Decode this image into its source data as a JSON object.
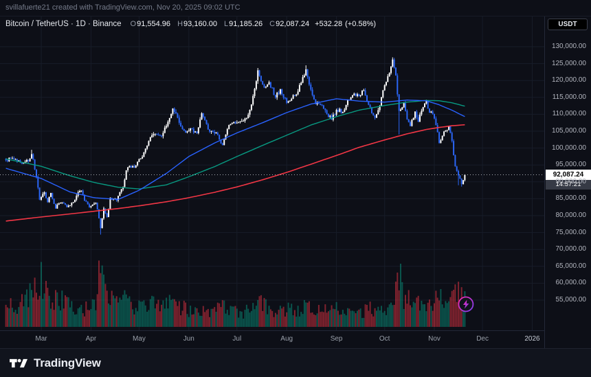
{
  "attribution": "svillafuerte21 created with TradingView.com, Nov 20, 2025 09:02 UTC",
  "header": {
    "symbol_line": "Bitcoin / TetherUS · 1D · Binance",
    "ohlc": [
      {
        "k": "O",
        "v": "91,554.96"
      },
      {
        "k": "H",
        "v": "93,160.00"
      },
      {
        "k": "L",
        "v": "91,185.26"
      },
      {
        "k": "C",
        "v": "92,087.24"
      }
    ],
    "change": "+532.28",
    "change_pct": "(+0.58%)"
  },
  "axis": {
    "currency_button": "USDT",
    "price_label": "92,087.24",
    "countdown": "14:57:21"
  },
  "footer": {
    "brand": "TradingView"
  },
  "chart_data": {
    "type": "candlestick",
    "symbol": "Bitcoin / TetherUS",
    "interval": "1D",
    "exchange": "Binance",
    "last_bar": {
      "open": 91554.96,
      "high": 93160.0,
      "low": 91185.26,
      "close": 92087.24,
      "change": 532.28,
      "change_pct": 0.58
    },
    "current_price": 92087.24,
    "y_ticks": [
      130000,
      125000,
      120000,
      115000,
      110000,
      105000,
      100000,
      95000,
      90000,
      85000,
      80000,
      75000,
      70000,
      65000,
      60000,
      55000
    ],
    "y_range": [
      52000,
      133500
    ],
    "x_axis": {
      "labels": [
        {
          "label": "Mar",
          "day": 22
        },
        {
          "label": "Apr",
          "day": 53
        },
        {
          "label": "May",
          "day": 83
        },
        {
          "label": "Jun",
          "day": 114
        },
        {
          "label": "Jul",
          "day": 144
        },
        {
          "label": "Aug",
          "day": 175
        },
        {
          "label": "Sep",
          "day": 206
        },
        {
          "label": "Oct",
          "day": 236
        },
        {
          "label": "Nov",
          "day": 267
        },
        {
          "label": "Dec",
          "day": 297
        },
        {
          "label": "2026",
          "day": 328
        }
      ]
    },
    "num_days": 287,
    "close_anchors": [
      [
        0,
        96400
      ],
      [
        4,
        97000
      ],
      [
        9,
        95800
      ],
      [
        14,
        96100
      ],
      [
        16,
        98200
      ],
      [
        17,
        96600
      ],
      [
        19,
        91500
      ],
      [
        21,
        84700
      ],
      [
        24,
        86900
      ],
      [
        26,
        84000
      ],
      [
        28,
        86700
      ],
      [
        31,
        82100
      ],
      [
        33,
        83600
      ],
      [
        35,
        83900
      ],
      [
        38,
        82500
      ],
      [
        42,
        84000
      ],
      [
        45,
        86900
      ],
      [
        47,
        87400
      ],
      [
        49,
        84400
      ],
      [
        52,
        82500
      ],
      [
        56,
        83800
      ],
      [
        58,
        79200
      ],
      [
        59,
        76300
      ],
      [
        61,
        82100
      ],
      [
        63,
        79600
      ],
      [
        65,
        85200
      ],
      [
        69,
        84500
      ],
      [
        73,
        88500
      ],
      [
        75,
        93400
      ],
      [
        77,
        94700
      ],
      [
        80,
        94200
      ],
      [
        84,
        96900
      ],
      [
        87,
        99800
      ],
      [
        90,
        103200
      ],
      [
        94,
        104100
      ],
      [
        97,
        103500
      ],
      [
        100,
        106500
      ],
      [
        104,
        111700
      ],
      [
        107,
        109000
      ],
      [
        110,
        105600
      ],
      [
        112,
        104600
      ],
      [
        115,
        105800
      ],
      [
        119,
        104400
      ],
      [
        122,
        110300
      ],
      [
        126,
        105500
      ],
      [
        129,
        104800
      ],
      [
        132,
        103900
      ],
      [
        135,
        100900
      ],
      [
        138,
        105600
      ],
      [
        140,
        107100
      ],
      [
        144,
        107500
      ],
      [
        147,
        108000
      ],
      [
        150,
        108900
      ],
      [
        152,
        111300
      ],
      [
        155,
        117500
      ],
      [
        157,
        123000
      ],
      [
        159,
        119800
      ],
      [
        161,
        117900
      ],
      [
        164,
        119500
      ],
      [
        168,
        115000
      ],
      [
        171,
        117400
      ],
      [
        175,
        113400
      ],
      [
        178,
        114600
      ],
      [
        182,
        116700
      ],
      [
        185,
        121000
      ],
      [
        187,
        123300
      ],
      [
        190,
        117300
      ],
      [
        193,
        113000
      ],
      [
        196,
        112800
      ],
      [
        199,
        111200
      ],
      [
        203,
        108400
      ],
      [
        206,
        111300
      ],
      [
        210,
        110700
      ],
      [
        213,
        114300
      ],
      [
        217,
        116100
      ],
      [
        220,
        115400
      ],
      [
        223,
        117100
      ],
      [
        226,
        112800
      ],
      [
        230,
        109000
      ],
      [
        233,
        112500
      ],
      [
        236,
        118600
      ],
      [
        239,
        122200
      ],
      [
        241,
        126200
      ],
      [
        243,
        121500
      ],
      [
        245,
        111000
      ],
      [
        248,
        113300
      ],
      [
        250,
        108500
      ],
      [
        252,
        106500
      ],
      [
        255,
        110800
      ],
      [
        257,
        107800
      ],
      [
        259,
        111000
      ],
      [
        262,
        113900
      ],
      [
        264,
        110500
      ],
      [
        266,
        110100
      ],
      [
        268,
        106800
      ],
      [
        270,
        101500
      ],
      [
        272,
        103600
      ],
      [
        274,
        105200
      ],
      [
        276,
        106500
      ],
      [
        278,
        102100
      ],
      [
        280,
        94600
      ],
      [
        282,
        91900
      ],
      [
        284,
        89300
      ],
      [
        285,
        90500
      ],
      [
        286,
        92087.24
      ]
    ],
    "low_overrides": {
      "59": 74400,
      "245": 104000,
      "282": 89000,
      "284": 88600
    },
    "high_overrides": {
      "16": 99500,
      "157": 123200,
      "187": 124500,
      "241": 126300
    },
    "volume_anchors": [
      [
        0,
        0.42
      ],
      [
        8,
        0.35
      ],
      [
        16,
        0.6
      ],
      [
        19,
        0.85
      ],
      [
        21,
        0.95
      ],
      [
        25,
        0.6
      ],
      [
        28,
        0.5
      ],
      [
        33,
        0.55
      ],
      [
        38,
        0.4
      ],
      [
        42,
        0.32
      ],
      [
        47,
        0.35
      ],
      [
        52,
        0.3
      ],
      [
        56,
        0.5
      ],
      [
        59,
        1.0
      ],
      [
        61,
        0.8
      ],
      [
        65,
        0.5
      ],
      [
        70,
        0.38
      ],
      [
        75,
        0.5
      ],
      [
        80,
        0.38
      ],
      [
        84,
        0.35
      ],
      [
        90,
        0.42
      ],
      [
        97,
        0.32
      ],
      [
        104,
        0.45
      ],
      [
        110,
        0.35
      ],
      [
        117,
        0.28
      ],
      [
        124,
        0.3
      ],
      [
        130,
        0.28
      ],
      [
        135,
        0.4
      ],
      [
        140,
        0.3
      ],
      [
        147,
        0.26
      ],
      [
        152,
        0.32
      ],
      [
        157,
        0.5
      ],
      [
        162,
        0.38
      ],
      [
        168,
        0.3
      ],
      [
        175,
        0.32
      ],
      [
        182,
        0.3
      ],
      [
        187,
        0.42
      ],
      [
        193,
        0.38
      ],
      [
        199,
        0.3
      ],
      [
        203,
        0.35
      ],
      [
        210,
        0.28
      ],
      [
        217,
        0.3
      ],
      [
        223,
        0.28
      ],
      [
        230,
        0.35
      ],
      [
        236,
        0.32
      ],
      [
        241,
        0.45
      ],
      [
        245,
        1.0
      ],
      [
        247,
        0.6
      ],
      [
        252,
        0.45
      ],
      [
        257,
        0.4
      ],
      [
        262,
        0.35
      ],
      [
        266,
        0.4
      ],
      [
        270,
        0.55
      ],
      [
        274,
        0.45
      ],
      [
        278,
        0.5
      ],
      [
        280,
        0.65
      ],
      [
        282,
        0.6
      ],
      [
        284,
        0.75
      ],
      [
        286,
        0.5
      ]
    ],
    "ma_lines": [
      {
        "name": "ma-slow",
        "color": "#f23645",
        "width": 1.6,
        "points": [
          [
            0,
            78400
          ],
          [
            22,
            79600
          ],
          [
            40,
            80500
          ],
          [
            55,
            81300
          ],
          [
            70,
            82100
          ],
          [
            83,
            82900
          ],
          [
            100,
            84100
          ],
          [
            114,
            85300
          ],
          [
            130,
            86900
          ],
          [
            144,
            88500
          ],
          [
            160,
            90600
          ],
          [
            175,
            92800
          ],
          [
            190,
            95200
          ],
          [
            206,
            97800
          ],
          [
            220,
            100200
          ],
          [
            236,
            102400
          ],
          [
            250,
            104200
          ],
          [
            262,
            105500
          ],
          [
            270,
            106100
          ],
          [
            278,
            106600
          ],
          [
            286,
            106900
          ]
        ]
      },
      {
        "name": "ma-mid",
        "color": "#089981",
        "width": 1.4,
        "points": [
          [
            0,
            96800
          ],
          [
            22,
            94600
          ],
          [
            40,
            91800
          ],
          [
            55,
            89800
          ],
          [
            70,
            88400
          ],
          [
            83,
            87900
          ],
          [
            100,
            89100
          ],
          [
            114,
            91500
          ],
          [
            130,
            94500
          ],
          [
            144,
            97500
          ],
          [
            160,
            100800
          ],
          [
            175,
            103800
          ],
          [
            190,
            106800
          ],
          [
            206,
            109300
          ],
          [
            220,
            111200
          ],
          [
            236,
            112600
          ],
          [
            250,
            113600
          ],
          [
            262,
            114100
          ],
          [
            270,
            114000
          ],
          [
            278,
            113400
          ],
          [
            286,
            112400
          ]
        ]
      },
      {
        "name": "ma-fast",
        "color": "#2962ff",
        "width": 1.4,
        "points": [
          [
            0,
            94000
          ],
          [
            22,
            91000
          ],
          [
            40,
            87000
          ],
          [
            55,
            85300
          ],
          [
            70,
            84800
          ],
          [
            83,
            87500
          ],
          [
            100,
            92500
          ],
          [
            114,
            97500
          ],
          [
            130,
            101500
          ],
          [
            144,
            104500
          ],
          [
            160,
            107500
          ],
          [
            175,
            110500
          ],
          [
            190,
            113000
          ],
          [
            206,
            114600
          ],
          [
            220,
            113900
          ],
          [
            236,
            113600
          ],
          [
            250,
            114200
          ],
          [
            262,
            114000
          ],
          [
            270,
            112800
          ],
          [
            278,
            111200
          ],
          [
            286,
            109300
          ]
        ]
      }
    ],
    "marker": {
      "type": "lightning",
      "day": 286,
      "colors": [
        "#f72ab0",
        "#7b3ff2"
      ]
    },
    "colors": {
      "up": "#ffffff",
      "down": "#2b66f6",
      "vol_up": "rgba(8,153,129,0.5)",
      "vol_down": "rgba(242,54,69,0.5)",
      "grid": "#171c28",
      "axis_text": "#b2b5be",
      "price_line": "#adb1b8"
    }
  }
}
